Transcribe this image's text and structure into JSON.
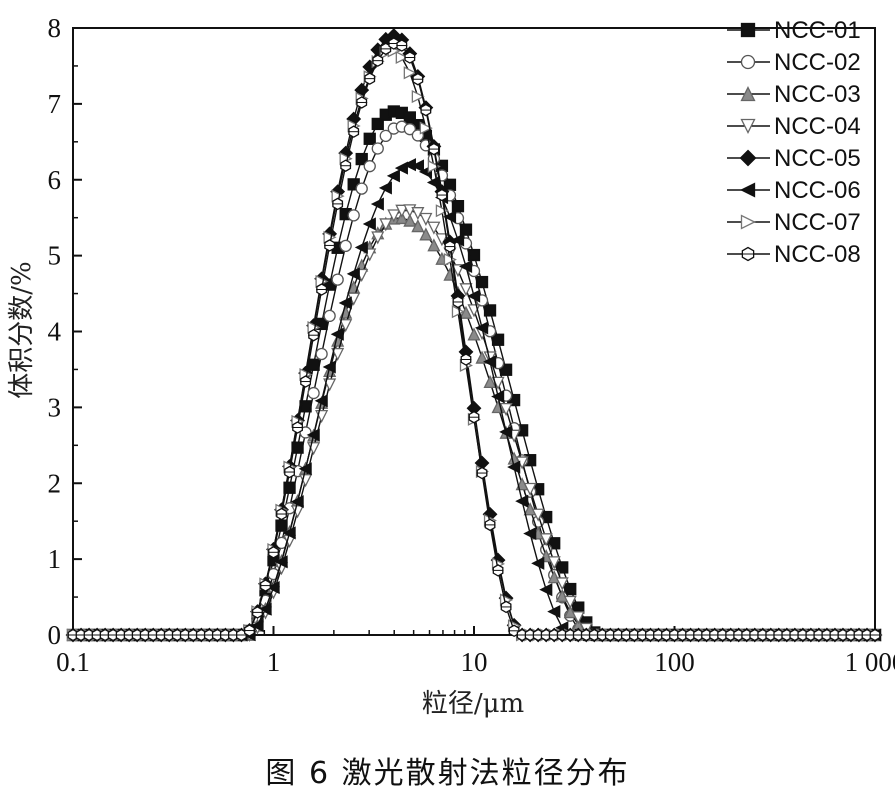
{
  "caption": "图 6 激光散射法粒径分布",
  "chart_data": {
    "type": "line",
    "xlabel": "粒径/μm",
    "ylabel": "体积分数/%",
    "xscale": "log",
    "xlim": [
      0.1,
      1000
    ],
    "ylim": [
      0,
      8
    ],
    "xticks": [
      0.1,
      1,
      10,
      100,
      1000
    ],
    "xtick_labels": [
      "0.1",
      "1",
      "10",
      "100",
      "1 000"
    ],
    "yticks": [
      0,
      1,
      2,
      3,
      4,
      5,
      6,
      7,
      8
    ],
    "ytick_labels": [
      "0",
      "1",
      "2",
      "3",
      "4",
      "5",
      "6",
      "7",
      "8"
    ],
    "legend_position": "top-right",
    "series": [
      {
        "name": "NCC-01",
        "marker": "square",
        "peak_x": 4.0,
        "peak_y": 6.9,
        "x_start": 0.72,
        "x_end": 42
      },
      {
        "name": "NCC-02",
        "marker": "circle",
        "peak_x": 4.3,
        "peak_y": 6.7,
        "x_start": 0.74,
        "x_end": 36
      },
      {
        "name": "NCC-03",
        "marker": "triangle-up",
        "peak_x": 4.2,
        "peak_y": 5.5,
        "x_start": 0.75,
        "x_end": 38
      },
      {
        "name": "NCC-04",
        "marker": "triangle-down",
        "peak_x": 4.6,
        "peak_y": 5.6,
        "x_start": 0.76,
        "x_end": 40
      },
      {
        "name": "NCC-05",
        "marker": "diamond",
        "peak_x": 4.0,
        "peak_y": 7.9,
        "x_start": 0.72,
        "x_end": 17
      },
      {
        "name": "NCC-06",
        "marker": "triangle-left",
        "peak_x": 4.9,
        "peak_y": 6.2,
        "x_start": 0.75,
        "x_end": 30
      },
      {
        "name": "NCC-07",
        "marker": "triangle-right",
        "peak_x": 3.9,
        "peak_y": 7.7,
        "x_start": 0.72,
        "x_end": 17
      },
      {
        "name": "NCC-08",
        "marker": "hexagon",
        "peak_x": 4.1,
        "peak_y": 7.8,
        "x_start": 0.72,
        "x_end": 16.5
      }
    ]
  }
}
